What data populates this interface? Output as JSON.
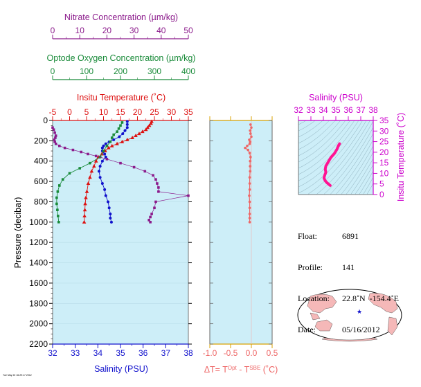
{
  "colors": {
    "nitrate": "#8b1a8b",
    "oxygen": "#1a8b3a",
    "temperature": "#dd1111",
    "salinity": "#1111cc",
    "delta": "#ee6666",
    "salinity_ts": "#cc00cc",
    "ts_line": "#ff1493",
    "panel_bg": "#cdeef8",
    "land": "#f5b8b8"
  },
  "info": {
    "float_label": "Float:",
    "float_value": "6891",
    "profile_label": "Profile:",
    "profile_value": "141",
    "location_label": "Location:",
    "location_value": "22.8˚N  -154.4˚E",
    "date_label": "Date:",
    "date_value": "05/16/2012"
  },
  "footnote": "Tue May 22 16:29:17 2012",
  "map": {
    "float_marker": "blue star",
    "marker_lat": 22.8,
    "marker_lon": -154.4
  },
  "chart_data": [
    {
      "type": "line",
      "panel": "main-profile",
      "ylabel": "Pressure (decibar)",
      "ylim": [
        2200,
        0
      ],
      "yticks": [
        0,
        200,
        400,
        600,
        800,
        1000,
        1200,
        1400,
        1600,
        1800,
        2000,
        2200
      ],
      "axes": {
        "nitrate": {
          "label": "Nitrate Concentration (µm/kg)",
          "lim": [
            0,
            50
          ],
          "ticks": [
            0,
            10,
            20,
            30,
            40,
            50
          ]
        },
        "oxygen": {
          "label": "Optode Oxygen Concentration (µm/kg)",
          "lim": [
            0,
            400
          ],
          "ticks": [
            0,
            100,
            200,
            300,
            400
          ]
        },
        "temperature": {
          "label": "Insitu Temperature (˚C)",
          "lim": [
            -5,
            35
          ],
          "ticks": [
            -5,
            0,
            5,
            10,
            15,
            20,
            25,
            30,
            35
          ]
        },
        "salinity": {
          "label": "Salinity (PSU)",
          "lim": [
            32,
            38
          ],
          "ticks": [
            32,
            33,
            34,
            35,
            36,
            37,
            38
          ]
        }
      },
      "series": [
        {
          "axis": "temperature",
          "marker": "triangle",
          "x": [
            24.2,
            24.0,
            23.5,
            23.0,
            22.5,
            21.5,
            20.5,
            19.5,
            18.5,
            17.0,
            15.5,
            14.0,
            12.5,
            11.5,
            10.5,
            9.5,
            8.5,
            7.8,
            7.2,
            6.5,
            6.0,
            5.5,
            5.1,
            4.8,
            4.6,
            4.5,
            4.4,
            4.3
          ],
          "p": [
            10,
            30,
            50,
            70,
            90,
            110,
            130,
            150,
            170,
            190,
            210,
            230,
            250,
            270,
            300,
            330,
            360,
            400,
            450,
            500,
            560,
            620,
            700,
            760,
            820,
            880,
            940,
            1000
          ]
        },
        {
          "axis": "salinity",
          "marker": "circle",
          "x": [
            35.3,
            35.3,
            35.3,
            35.2,
            35.1,
            34.95,
            34.7,
            34.5,
            34.35,
            34.25,
            34.2,
            34.2,
            34.3,
            34.35,
            34.2,
            34.1,
            34.05,
            34.1,
            34.2,
            34.3,
            34.35,
            34.45,
            34.5,
            34.55,
            34.55,
            34.6
          ],
          "p": [
            10,
            40,
            70,
            100,
            130,
            160,
            190,
            210,
            230,
            250,
            270,
            300,
            330,
            360,
            400,
            450,
            500,
            560,
            620,
            680,
            740,
            800,
            860,
            920,
            960,
            1000
          ]
        },
        {
          "axis": "oxygen",
          "marker": "square",
          "x": [
            205,
            200,
            195,
            190,
            180,
            175,
            170,
            160,
            150,
            140,
            110,
            80,
            50,
            30,
            20,
            15,
            12,
            12,
            14,
            16,
            18
          ],
          "p": [
            20,
            50,
            80,
            110,
            140,
            170,
            210,
            250,
            300,
            360,
            420,
            470,
            520,
            580,
            640,
            700,
            760,
            820,
            880,
            940,
            1000
          ]
        },
        {
          "axis": "nitrate",
          "marker": "square",
          "x": [
            0,
            0.4,
            0.8,
            1.2,
            1.0,
            0.6,
            0.8,
            1.2,
            2.5,
            4.5,
            7.5,
            10.5,
            13,
            16,
            20,
            25,
            30,
            34,
            37,
            38,
            38.5,
            39,
            39,
            50,
            38,
            37.5,
            36.5,
            36,
            35.5,
            36
          ],
          "p": [
            70,
            90,
            120,
            150,
            170,
            190,
            210,
            230,
            250,
            270,
            290,
            310,
            330,
            350,
            380,
            420,
            460,
            500,
            540,
            580,
            620,
            660,
            700,
            740,
            800,
            860,
            920,
            950,
            980,
            1000
          ]
        }
      ]
    },
    {
      "type": "line",
      "panel": "delta-temperature",
      "xlabel": "ΔT= T^Opt - T^SBE (˚C)",
      "xlim": [
        -1.0,
        0.5
      ],
      "xticks": [
        -1.0,
        -0.5,
        0.0,
        0.5
      ],
      "ylim": [
        2200,
        0
      ],
      "series": [
        {
          "marker": "circle",
          "x": [
            -0.02,
            0.0,
            -0.03,
            -0.02,
            0.0,
            -0.05,
            -0.03,
            -0.04,
            -0.1,
            -0.15,
            -0.08,
            -0.04,
            -0.02,
            -0.03,
            -0.03,
            -0.03,
            -0.04,
            -0.04,
            -0.04,
            -0.05,
            -0.04,
            -0.04,
            -0.04,
            -0.04,
            -0.04
          ],
          "p": [
            40,
            70,
            100,
            130,
            160,
            190,
            210,
            230,
            250,
            270,
            290,
            320,
            360,
            400,
            450,
            500,
            560,
            620,
            680,
            740,
            800,
            860,
            920,
            960,
            1000
          ]
        }
      ]
    },
    {
      "type": "line",
      "panel": "theta-s",
      "xlabel": "Salinity (PSU)",
      "ylabel": "Insitu Temperature (˚C)",
      "xlim": [
        32,
        38
      ],
      "xticks": [
        32,
        33,
        34,
        35,
        36,
        37,
        38
      ],
      "ylim": [
        0,
        35
      ],
      "yticks": [
        0,
        5,
        10,
        15,
        20,
        25,
        30,
        35
      ],
      "series": [
        {
          "x": [
            35.3,
            35.2,
            35.1,
            34.9,
            34.6,
            34.4,
            34.2,
            34.15,
            34.2,
            34.1,
            34.05,
            34.15,
            34.3,
            34.45,
            34.5,
            34.55
          ],
          "y": [
            24,
            23,
            21.5,
            19.5,
            17.5,
            15.5,
            13.5,
            12,
            10.5,
            9,
            7.8,
            6.5,
            5.5,
            4.8,
            4.5,
            4.3
          ]
        }
      ]
    }
  ]
}
